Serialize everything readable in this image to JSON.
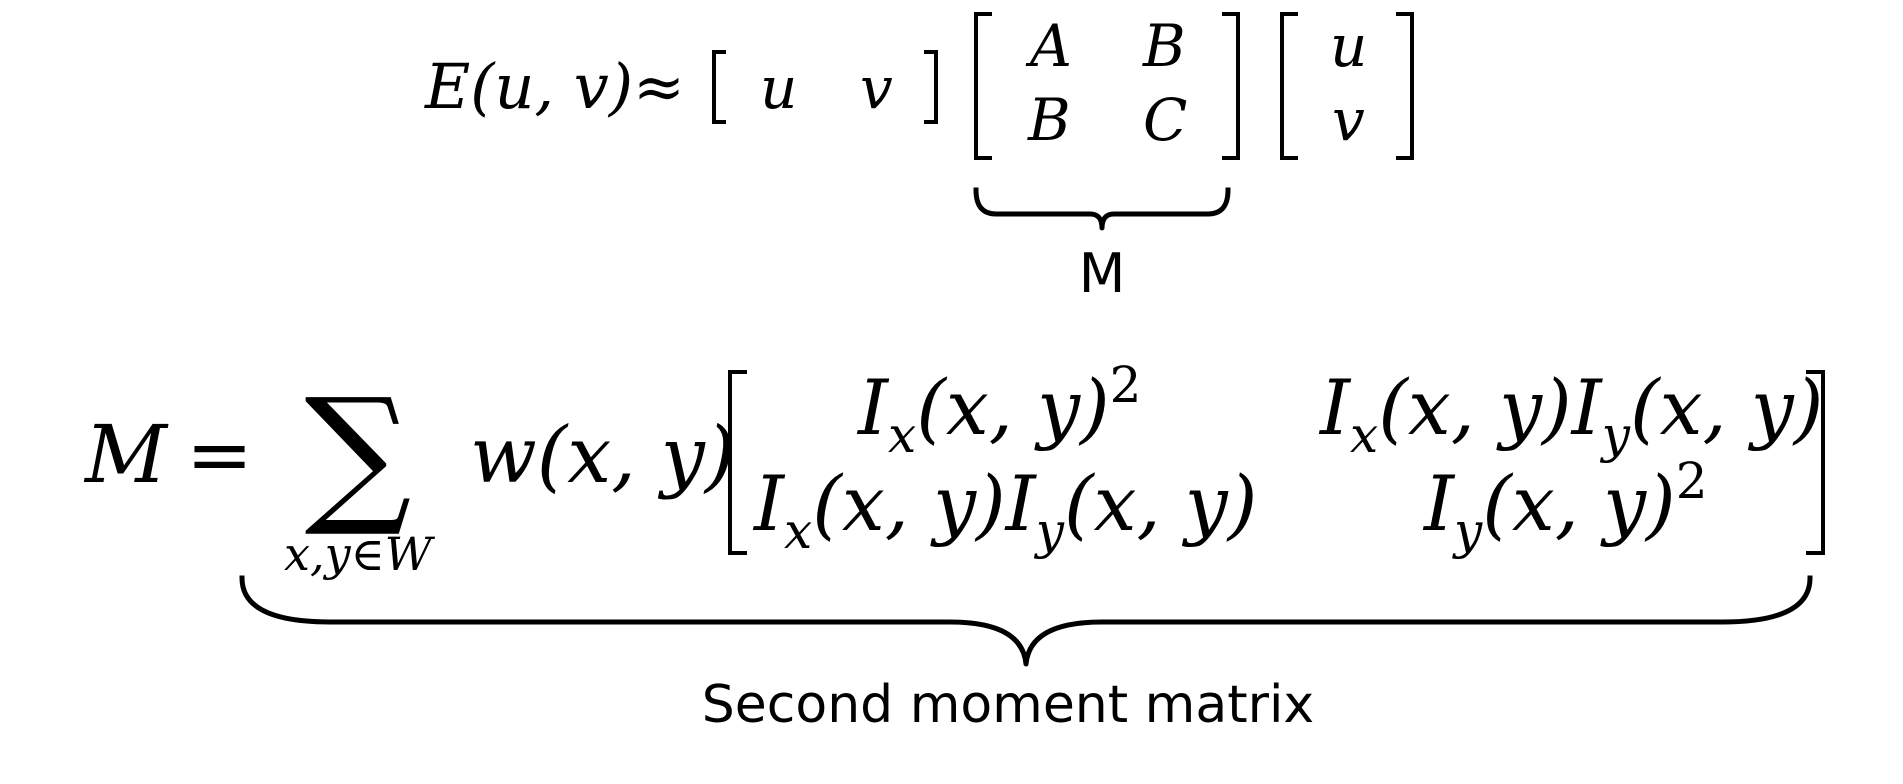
{
  "eq1": {
    "lhs": "E(u, v)",
    "approx": "≈",
    "row_vector": [
      "u",
      "v"
    ],
    "matrix": [
      [
        "A",
        "B"
      ],
      [
        "B",
        "C"
      ]
    ],
    "col_vector": [
      "u",
      "v"
    ],
    "brace_label": "M"
  },
  "eq2": {
    "lhs": "M",
    "equals": "=",
    "sum_symbol": "∑",
    "sum_subscript": "x,y∈W",
    "weight": "w(x, y)",
    "cell_11_base": "I",
    "cell_11_sub": "x",
    "cell_11_rest": "(x, y)",
    "cell_11_sup": "2",
    "cell_12_a": "I",
    "cell_12_a_sub": "x",
    "cell_12_mid": "(x, y)",
    "cell_12_b": "I",
    "cell_12_b_sub": "y",
    "cell_12_end": "(x, y)",
    "cell_21_a": "I",
    "cell_21_a_sub": "x",
    "cell_21_mid": "(x, y)",
    "cell_21_b": "I",
    "cell_21_b_sub": "y",
    "cell_21_end": "(x, y)",
    "cell_22_base": "I",
    "cell_22_sub": "y",
    "cell_22_rest": "(x, y)",
    "cell_22_sup": "2",
    "brace_label": "Second moment matrix"
  }
}
